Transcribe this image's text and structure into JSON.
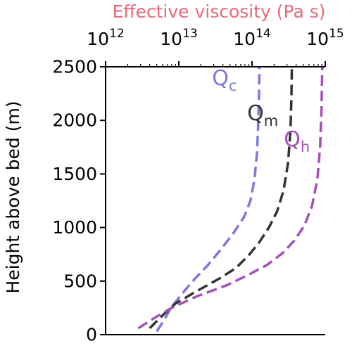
{
  "chart_data": {
    "type": "line",
    "xlabel": "Effective viscosity (Pa s)",
    "ylabel": "Height above bed (m)",
    "xscale": "log",
    "xlim": [
      1000000000000.0,
      1000000000000000.0
    ],
    "ylim": [
      0,
      2500
    ],
    "x_axis_position": "top",
    "grid": false,
    "legend": "none",
    "x_ticks": [
      {
        "value": 1000000000000.0,
        "base": "10",
        "exp": "12"
      },
      {
        "value": 10000000000000.0,
        "base": "10",
        "exp": "13"
      },
      {
        "value": 100000000000000.0,
        "base": "10",
        "exp": "14"
      },
      {
        "value": 1000000000000000.0,
        "base": "10",
        "exp": "15"
      }
    ],
    "y_ticks": [
      {
        "value": 0,
        "label": "0"
      },
      {
        "value": 500,
        "label": "500"
      },
      {
        "value": 1000,
        "label": "1000"
      },
      {
        "value": 1500,
        "label": "1500"
      },
      {
        "value": 2000,
        "label": "2000"
      },
      {
        "value": 2500,
        "label": "2500"
      }
    ],
    "series": [
      {
        "name": "Qc",
        "label_main": "Q",
        "label_sub": "c",
        "label_at": {
          "x": 42000000000000.0,
          "y": 2330
        },
        "color": "#7b78e6",
        "points": [
          {
            "x": 5000000000000.0,
            "y": 30
          },
          {
            "x": 6200000000000.0,
            "y": 130
          },
          {
            "x": 8000000000000.0,
            "y": 260
          },
          {
            "x": 11000000000000.0,
            "y": 380
          },
          {
            "x": 16000000000000.0,
            "y": 510
          },
          {
            "x": 25000000000000.0,
            "y": 650
          },
          {
            "x": 38000000000000.0,
            "y": 800
          },
          {
            "x": 56000000000000.0,
            "y": 950
          },
          {
            "x": 78000000000000.0,
            "y": 1100
          },
          {
            "x": 95000000000000.0,
            "y": 1250
          },
          {
            "x": 108000000000000.0,
            "y": 1450
          },
          {
            "x": 117000000000000.0,
            "y": 1700
          },
          {
            "x": 122000000000000.0,
            "y": 2000
          },
          {
            "x": 125000000000000.0,
            "y": 2300
          },
          {
            "x": 126000000000000.0,
            "y": 2500
          }
        ]
      },
      {
        "name": "Qm",
        "label_main": "Q",
        "label_sub": "m",
        "label_at": {
          "x": 140000000000000.0,
          "y": 2000
        },
        "color": "#333333",
        "points": [
          {
            "x": 4000000000000.0,
            "y": 60
          },
          {
            "x": 6000000000000.0,
            "y": 180
          },
          {
            "x": 9000000000000.0,
            "y": 290
          },
          {
            "x": 18000000000000.0,
            "y": 410
          },
          {
            "x": 35000000000000.0,
            "y": 520
          },
          {
            "x": 60000000000000.0,
            "y": 620
          },
          {
            "x": 90000000000000.0,
            "y": 740
          },
          {
            "x": 125000000000000.0,
            "y": 860
          },
          {
            "x": 170000000000000.0,
            "y": 1000
          },
          {
            "x": 220000000000000.0,
            "y": 1150
          },
          {
            "x": 270000000000000.0,
            "y": 1350
          },
          {
            "x": 310000000000000.0,
            "y": 1600
          },
          {
            "x": 335000000000000.0,
            "y": 1900
          },
          {
            "x": 345000000000000.0,
            "y": 2200
          },
          {
            "x": 350000000000000.0,
            "y": 2500
          }
        ]
      },
      {
        "name": "Qh",
        "label_main": "Q",
        "label_sub": "h",
        "label_at": {
          "x": 410000000000000.0,
          "y": 1760
        },
        "color": "#a450b8",
        "points": [
          {
            "x": 2800000000000.0,
            "y": 60
          },
          {
            "x": 4500000000000.0,
            "y": 150
          },
          {
            "x": 8000000000000.0,
            "y": 250
          },
          {
            "x": 18000000000000.0,
            "y": 360
          },
          {
            "x": 45000000000000.0,
            "y": 460
          },
          {
            "x": 90000000000000.0,
            "y": 560
          },
          {
            "x": 160000000000000.0,
            "y": 650
          },
          {
            "x": 260000000000000.0,
            "y": 760
          },
          {
            "x": 380000000000000.0,
            "y": 880
          },
          {
            "x": 520000000000000.0,
            "y": 1020
          },
          {
            "x": 660000000000000.0,
            "y": 1200
          },
          {
            "x": 780000000000000.0,
            "y": 1450
          },
          {
            "x": 850000000000000.0,
            "y": 1750
          },
          {
            "x": 890000000000000.0,
            "y": 2100
          },
          {
            "x": 910000000000000.0,
            "y": 2500
          }
        ]
      }
    ]
  }
}
